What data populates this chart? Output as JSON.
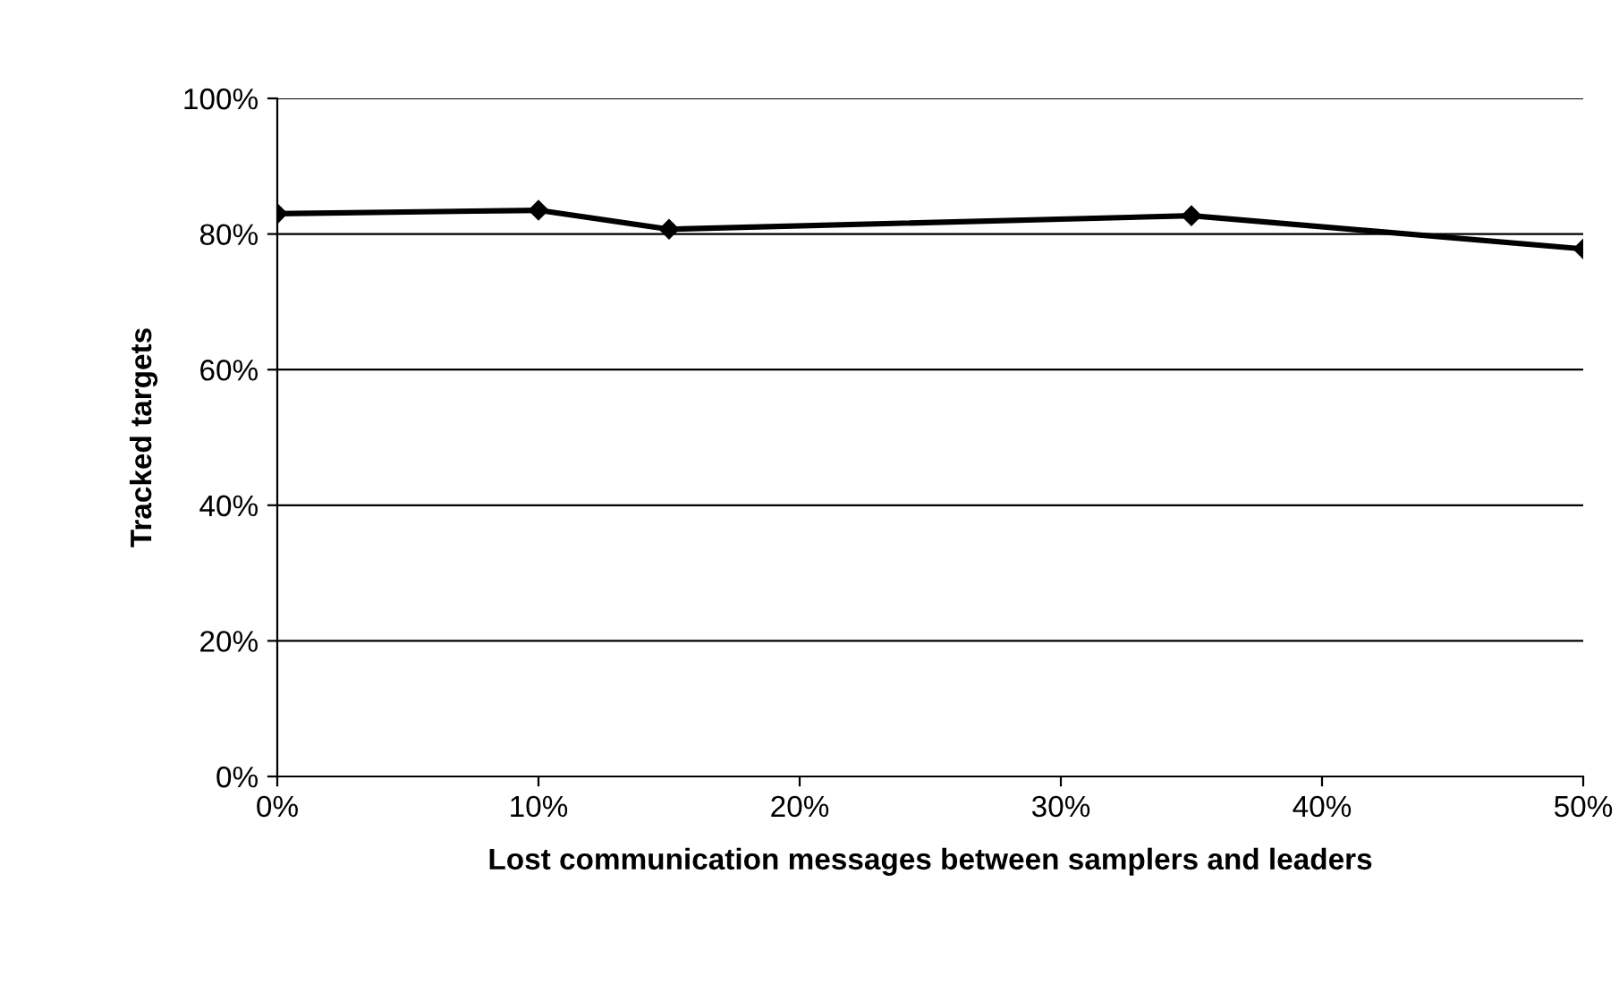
{
  "chart_data": {
    "type": "line",
    "xlabel": "Lost communication messages between samplers and leaders",
    "ylabel": "Tracked targets",
    "x": [
      0,
      10,
      15,
      35,
      50
    ],
    "series": [
      {
        "color": "#000000",
        "values": [
          83.0,
          83.5,
          80.7,
          82.7,
          77.8
        ]
      }
    ],
    "xlim": [
      0,
      50
    ],
    "ylim": [
      0,
      100
    ],
    "xticks": [
      {
        "value": 0,
        "label": "0%"
      },
      {
        "value": 10,
        "label": "10%"
      },
      {
        "value": 20,
        "label": "20%"
      },
      {
        "value": 30,
        "label": "30%"
      },
      {
        "value": 40,
        "label": "40%"
      },
      {
        "value": 50,
        "label": "50%"
      }
    ],
    "yticks": [
      {
        "value": 0,
        "label": "0%"
      },
      {
        "value": 20,
        "label": "20%"
      },
      {
        "value": 40,
        "label": "40%"
      },
      {
        "value": 60,
        "label": "60%"
      },
      {
        "value": 80,
        "label": "80%"
      },
      {
        "value": 100,
        "label": "100%"
      }
    ],
    "grid": "y",
    "marker": "diamond",
    "line_style": "solid",
    "legend": false
  }
}
